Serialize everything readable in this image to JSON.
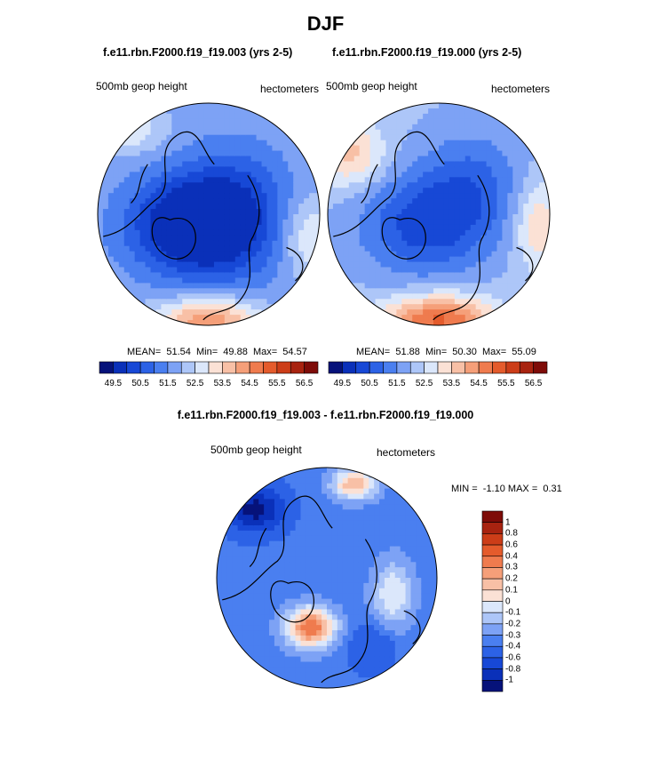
{
  "figure": {
    "title": "DJF",
    "diff_title": "f.e11.rbn.F2000.f19_f19.003 - f.e11.rbn.F2000.f19_f19.000"
  },
  "palette": {
    "diverging": [
      "#06127a",
      "#0a30b9",
      "#1748d6",
      "#2c62e6",
      "#4a7ff0",
      "#7da2f5",
      "#adc6f8",
      "#dbe7fb",
      "#fbe1d5",
      "#f8c0a6",
      "#f59f79",
      "#ef7b4e",
      "#e45b2c",
      "#cc3d18",
      "#a82310",
      "#7e0c08"
    ],
    "land_outline": "#000000",
    "disk_edge": "#000000"
  },
  "chart_data": [
    {
      "type": "heatmap",
      "panel": "polar-left",
      "title": "f.e11.rbn.F2000.f19_f19.003 (yrs 2-5)",
      "left_label": "500mb geop height",
      "right_label": "hectometers",
      "stats": {
        "mean_label": "MEAN=",
        "mean": "51.54",
        "min_label": "Min=",
        "min": "49.88",
        "max_label": "Max=",
        "max": "54.57"
      },
      "colorbar": {
        "orientation": "horizontal",
        "levels": [
          "49.5",
          "50.5",
          "51.5",
          "52.5",
          "53.5",
          "54.5",
          "55.5",
          "56.5"
        ],
        "n_boxes": 16
      },
      "field": {
        "range": [
          49.88,
          54.57
        ],
        "blobs": [
          {
            "cx": -0.2,
            "cy": 0.1,
            "strength": -2.6,
            "sx": 0.55,
            "sy": 0.45
          },
          {
            "cx": 0.25,
            "cy": 0.0,
            "strength": -1.6,
            "sx": 0.5,
            "sy": 0.6
          },
          {
            "cx": 0.0,
            "cy": 0.95,
            "strength": 2.6,
            "sx": 0.45,
            "sy": 0.2
          },
          {
            "cx": 0.9,
            "cy": 0.2,
            "strength": 1.2,
            "sx": 0.25,
            "sy": 0.35
          },
          {
            "cx": -0.7,
            "cy": -0.75,
            "strength": 1.0,
            "sx": 0.3,
            "sy": 0.2
          }
        ],
        "base": 51.9
      }
    },
    {
      "type": "heatmap",
      "panel": "polar-right",
      "title": "f.e11.rbn.F2000.f19_f19.000 (yrs 2-5)",
      "left_label": "500mb geop height",
      "right_label": "hectometers",
      "stats": {
        "mean_label": "MEAN=",
        "mean": "51.88",
        "min_label": "Min=",
        "min": "50.30",
        "max_label": "Max=",
        "max": "55.09"
      },
      "colorbar": {
        "orientation": "horizontal",
        "levels": [
          "49.5",
          "50.5",
          "51.5",
          "52.5",
          "53.5",
          "54.5",
          "55.5",
          "56.5"
        ],
        "n_boxes": 16
      },
      "field": {
        "range": [
          50.3,
          55.09
        ],
        "blobs": [
          {
            "cx": -0.15,
            "cy": 0.1,
            "strength": -1.8,
            "sx": 0.55,
            "sy": 0.45
          },
          {
            "cx": 0.3,
            "cy": -0.25,
            "strength": -1.2,
            "sx": 0.45,
            "sy": 0.5
          },
          {
            "cx": 0.0,
            "cy": 0.95,
            "strength": 3.0,
            "sx": 0.5,
            "sy": 0.22
          },
          {
            "cx": -0.8,
            "cy": -0.55,
            "strength": 1.6,
            "sx": 0.3,
            "sy": 0.3
          },
          {
            "cx": 0.9,
            "cy": 0.1,
            "strength": 1.4,
            "sx": 0.22,
            "sy": 0.4
          }
        ],
        "base": 52.1
      }
    },
    {
      "type": "heatmap",
      "panel": "polar-difference",
      "title": "f.e11.rbn.F2000.f19_f19.003 - f.e11.rbn.F2000.f19_f19.000",
      "left_label": "500mb geop height",
      "right_label": "hectometers",
      "stats": {
        "min_label": "MIN =",
        "min": "-1.10",
        "max_label": "MAX =",
        "max": "0.31"
      },
      "colorbar": {
        "orientation": "vertical",
        "levels": [
          "1",
          "0.8",
          "0.6",
          "0.4",
          "0.3",
          "0.2",
          "0.1",
          "0",
          "-0.1",
          "-0.2",
          "-0.3",
          "-0.4",
          "-0.6",
          "-0.8",
          "-1"
        ],
        "n_boxes": 16
      },
      "field": {
        "range": [
          -1.1,
          0.31
        ],
        "blobs": [
          {
            "cx": -0.65,
            "cy": -0.62,
            "strength": -0.75,
            "sx": 0.25,
            "sy": 0.2
          },
          {
            "cx": -0.15,
            "cy": 0.45,
            "strength": 0.75,
            "sx": 0.22,
            "sy": 0.18
          },
          {
            "cx": 0.25,
            "cy": -0.85,
            "strength": 0.55,
            "sx": 0.2,
            "sy": 0.14
          },
          {
            "cx": 0.6,
            "cy": 0.15,
            "strength": 0.35,
            "sx": 0.18,
            "sy": 0.3
          },
          {
            "cx": 0.4,
            "cy": 0.65,
            "strength": -0.25,
            "sx": 0.2,
            "sy": 0.2
          }
        ],
        "base": -0.35
      }
    }
  ]
}
